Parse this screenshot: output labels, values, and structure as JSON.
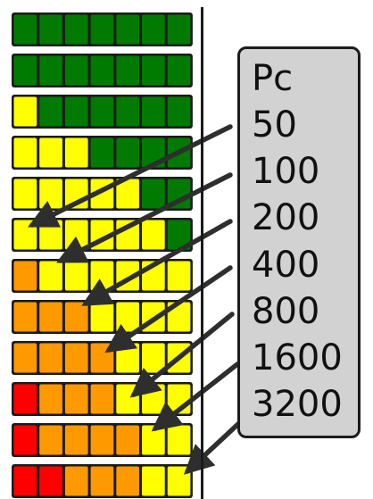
{
  "legend": {
    "header": "Pc",
    "labels": [
      "50",
      "100",
      "200",
      "400",
      "800",
      "1600",
      "3200"
    ]
  },
  "colors": {
    "dark_green": "#007a00",
    "yellow": "#ffff00",
    "orange": "#ff9900",
    "red": "#ff0000",
    "outline": "#1a1a1a",
    "arrow": "#2e2e2e",
    "legend_fill": "#d2d2d2"
  },
  "rows": [
    [
      "G",
      "G",
      "G",
      "G",
      "G",
      "G",
      "G"
    ],
    [
      "G",
      "G",
      "G",
      "G",
      "G",
      "G",
      "G"
    ],
    [
      "Y",
      "G",
      "G",
      "G",
      "G",
      "G",
      "G"
    ],
    [
      "Y",
      "Y",
      "Y",
      "G",
      "G",
      "G",
      "G"
    ],
    [
      "Y",
      "Y",
      "Y",
      "Y",
      "Y",
      "G",
      "G"
    ],
    [
      "Y",
      "Y",
      "Y",
      "Y",
      "Y",
      "Y",
      "G"
    ],
    [
      "O",
      "Y",
      "Y",
      "Y",
      "Y",
      "Y",
      "Y"
    ],
    [
      "O",
      "O",
      "O",
      "Y",
      "Y",
      "Y",
      "Y"
    ],
    [
      "O",
      "O",
      "O",
      "O",
      "Y",
      "Y",
      "Y"
    ],
    [
      "R",
      "O",
      "O",
      "O",
      "Y",
      "Y",
      "Y"
    ],
    [
      "R",
      "O",
      "O",
      "O",
      "O",
      "Y",
      "Y"
    ],
    [
      "R",
      "R",
      "O",
      "O",
      "O",
      "Y",
      "Y"
    ]
  ]
}
